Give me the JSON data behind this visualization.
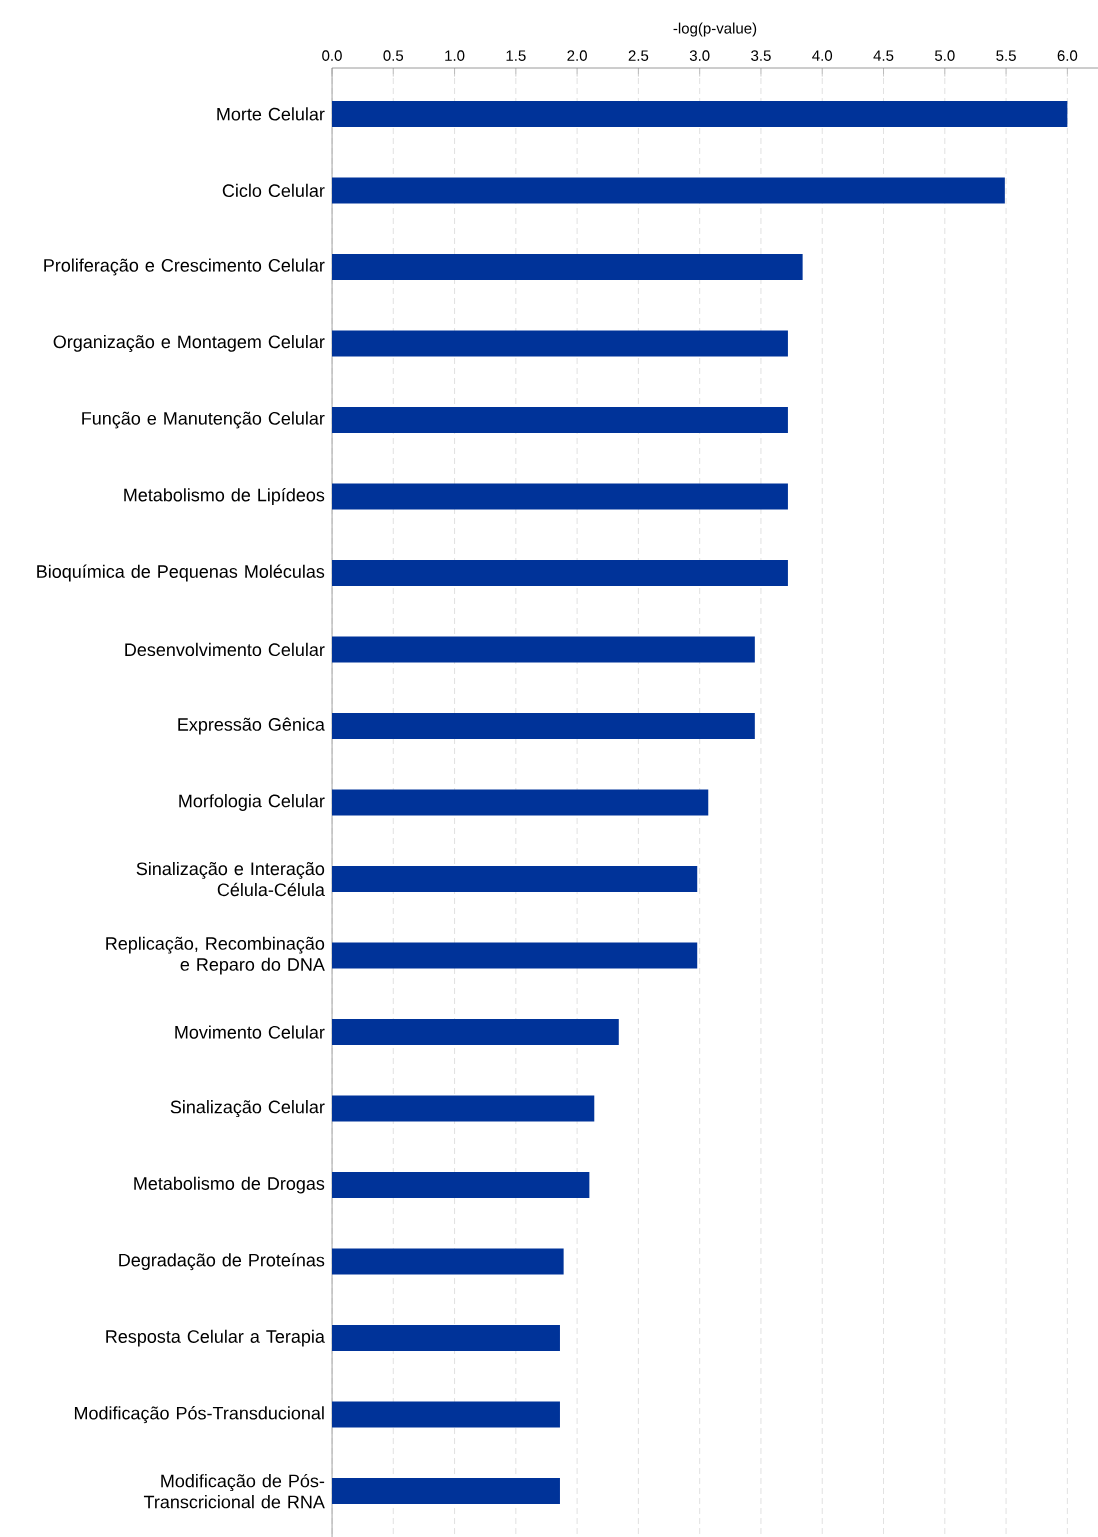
{
  "chart_data": {
    "type": "bar",
    "orientation": "horizontal",
    "xlabel": "-log(p-value)",
    "categories": [
      "Morte Celular",
      "Ciclo Celular",
      "Proliferação e Crescimento Celular",
      "Organização e Montagem Celular",
      "Função e Manutenção Celular",
      "Metabolismo de Lipídeos",
      "Bioquímica de Pequenas Moléculas",
      "Desenvolvimento Celular",
      "Expressão Gênica",
      "Morfologia Celular",
      "Sinalização e Interação Célula-Célula",
      "Replicação, Recombinação e Reparo do DNA",
      "Movimento Celular",
      "Sinalização Celular",
      "Metabolismo de Drogas",
      "Degradação de Proteínas",
      "Resposta Celular a Terapia",
      "Modificação Pós-Transducional",
      "Modificação de Pós-Transcricional de RNA"
    ],
    "values": [
      6.0,
      5.49,
      3.84,
      3.72,
      3.72,
      3.72,
      3.72,
      3.45,
      3.45,
      3.07,
      2.98,
      2.98,
      2.34,
      2.14,
      2.1,
      1.89,
      1.86,
      1.86,
      1.86
    ],
    "color": "#003399",
    "xlim": [
      0,
      6.25
    ],
    "xticks": [
      {
        "value": 0,
        "label": "0.0"
      },
      0.5,
      {
        "value": 1,
        "label": "1.0"
      },
      1.5,
      {
        "value": 2,
        "label": "2.0"
      },
      2.5,
      {
        "value": 3,
        "label": "3.0"
      },
      3.5,
      {
        "value": 4,
        "label": "4.0"
      },
      4.5,
      {
        "value": 5,
        "label": "5.0"
      },
      5.5,
      {
        "value": 6,
        "label": "6.0"
      }
    ],
    "grid": "x"
  }
}
